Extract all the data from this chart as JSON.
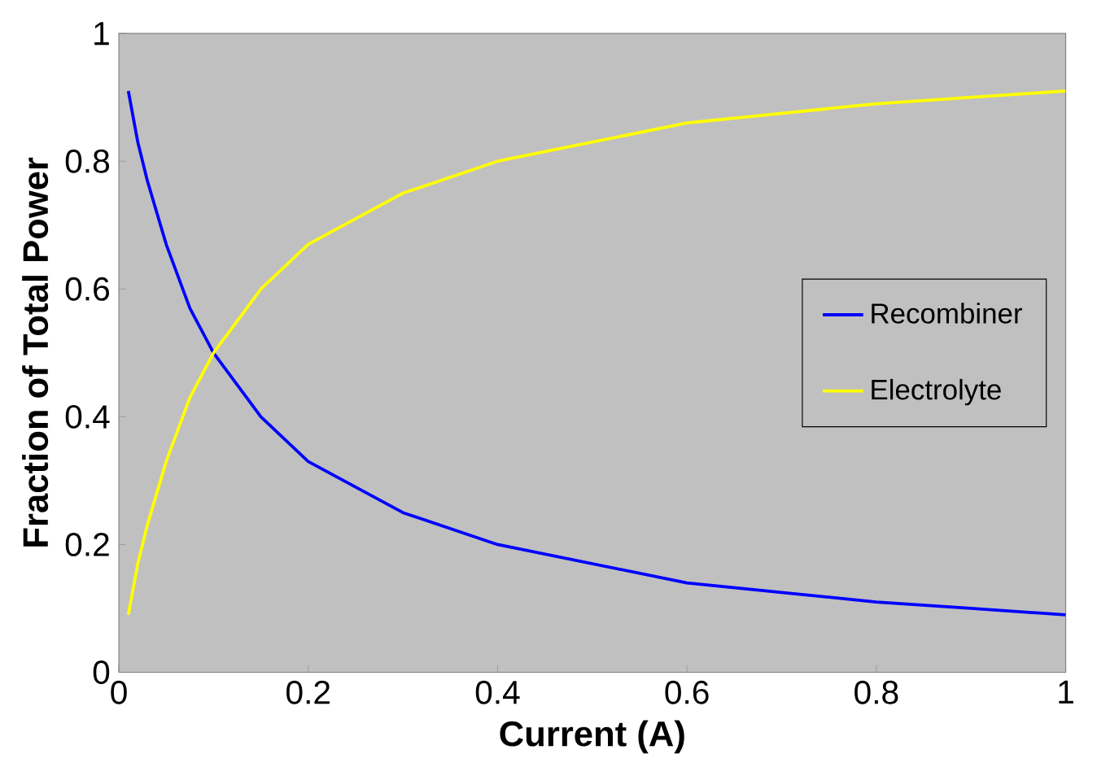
{
  "chart_data": {
    "type": "line",
    "xlabel": "Current (A)",
    "ylabel": "Fraction of Total Power",
    "x": [
      0.01,
      0.02,
      0.03,
      0.05,
      0.075,
      0.1,
      0.15,
      0.2,
      0.3,
      0.4,
      0.5,
      0.6,
      0.7,
      0.8,
      0.9,
      1.0
    ],
    "series": [
      {
        "name": "Recombiner",
        "color": "#0000ff",
        "values": [
          0.91,
          0.83,
          0.77,
          0.67,
          0.57,
          0.5,
          0.4,
          0.33,
          0.25,
          0.2,
          0.17,
          0.14,
          0.125,
          0.11,
          0.1,
          0.09
        ]
      },
      {
        "name": "Electrolyte",
        "color": "#ffff00",
        "values": [
          0.09,
          0.17,
          0.23,
          0.33,
          0.43,
          0.5,
          0.6,
          0.67,
          0.75,
          0.8,
          0.83,
          0.86,
          0.875,
          0.89,
          0.9,
          0.91
        ]
      }
    ],
    "xlim": [
      0,
      1
    ],
    "ylim": [
      0,
      1
    ],
    "xticks": [
      0,
      0.2,
      0.4,
      0.6,
      0.8,
      1
    ],
    "yticks": [
      0,
      0.2,
      0.4,
      0.6,
      0.8,
      1
    ],
    "grid": false,
    "legend": "right",
    "marker": "none",
    "line_style": "solid"
  }
}
